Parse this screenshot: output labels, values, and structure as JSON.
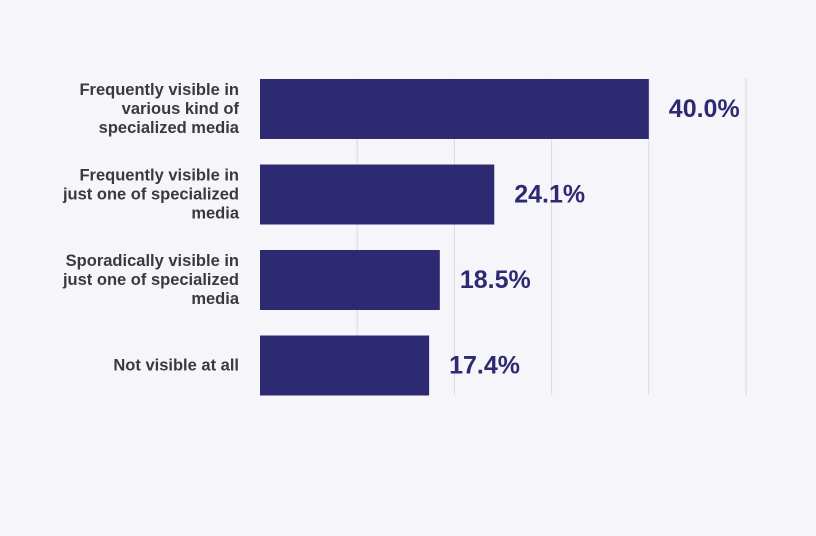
{
  "colors": {
    "background": "#f6f5fa",
    "bar": "#2e2a72",
    "grid": "#d9d8e0",
    "label_text": "#3a3a3a",
    "value_text": "#2e2a72"
  },
  "chart_data": {
    "type": "bar",
    "orientation": "horizontal",
    "categories": [
      [
        "Frequently visible in",
        "various kind of",
        "specialized media"
      ],
      [
        "Frequently visible in",
        "just one of specialized",
        "media"
      ],
      [
        "Sporadically visible in",
        "just one of specialized",
        "media"
      ],
      [
        "Not visible at all"
      ]
    ],
    "values": [
      40.0,
      24.1,
      18.5,
      17.4
    ],
    "value_labels": [
      "40.0%",
      "24.1%",
      "18.5%",
      "17.4%"
    ],
    "xlim": [
      0,
      50
    ],
    "grid_ticks": [
      10,
      20,
      30,
      40,
      50
    ],
    "grid": true,
    "legend": "none"
  }
}
